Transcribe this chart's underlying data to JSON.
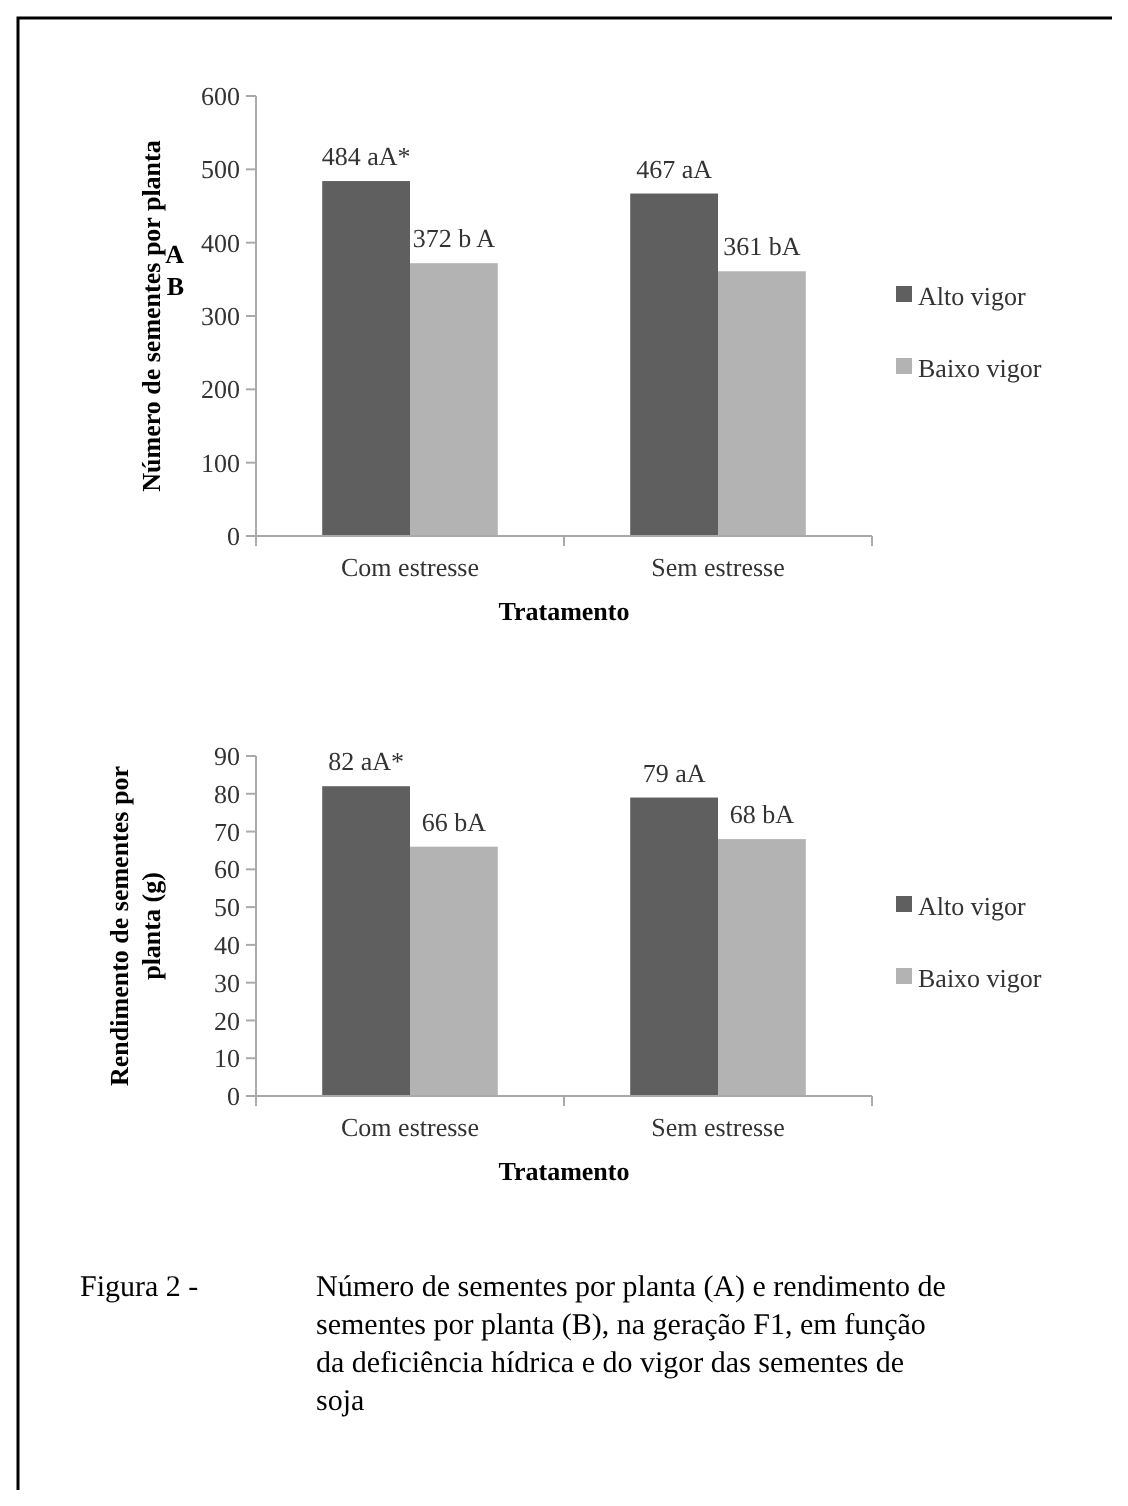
{
  "chart_data": [
    {
      "type": "bar",
      "xlabel": "Tratamento",
      "ylabel": "Número de sementes por planta",
      "categories": [
        "Com estresse",
        "Sem estresse"
      ],
      "series": [
        {
          "name": "Alto vigor",
          "color": "#5f5f5f",
          "values": [
            484,
            467
          ],
          "value_labels": [
            "484 aA*",
            "467 aA"
          ]
        },
        {
          "name": "Baixo vigor",
          "color": "#b3b3b3",
          "values": [
            372,
            361
          ],
          "value_labels": [
            "372 b A",
            "361 bA"
          ]
        }
      ],
      "ylim": [
        0,
        600
      ],
      "yticks": [
        0,
        100,
        200,
        300,
        400,
        500,
        600
      ],
      "grid": false,
      "legend": "right",
      "annotations": [
        "A",
        "B"
      ]
    },
    {
      "type": "bar",
      "xlabel": "Tratamento",
      "ylabel": "Rendimento de sementes por planta (g)",
      "categories": [
        "Com estresse",
        "Sem estresse"
      ],
      "series": [
        {
          "name": "Alto vigor",
          "color": "#5f5f5f",
          "values": [
            82,
            79
          ],
          "value_labels": [
            "82 aA*",
            "79 aA"
          ]
        },
        {
          "name": "Baixo vigor",
          "color": "#b3b3b3",
          "values": [
            66,
            68
          ],
          "value_labels": [
            "66 bA",
            "68 bA"
          ]
        }
      ],
      "ylim": [
        0,
        90
      ],
      "yticks": [
        0,
        10,
        20,
        30,
        40,
        50,
        60,
        70,
        80,
        90
      ],
      "grid": false,
      "legend": "right",
      "annotations": [
        "Figura 2 - Número de sementes por planta (A) e rendimento de sementes por planta (B), na geração F1, em função da deficiência hídrica e do vigor das sementes de soja"
      ]
    }
  ]
}
